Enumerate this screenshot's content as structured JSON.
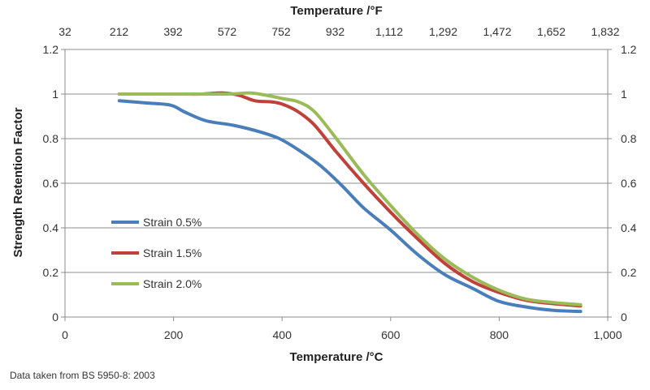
{
  "chart_data": {
    "type": "line",
    "title": "",
    "xlabel": "Temperature /°C",
    "x2label": "Temperature /°F",
    "ylabel": "Strength Retention Factor",
    "xlim": [
      0,
      1000
    ],
    "ylim": [
      0,
      1.2
    ],
    "x_ticks": [
      0,
      200,
      400,
      600,
      800,
      1000
    ],
    "x_tick_labels": [
      "0",
      "200",
      "400",
      "600",
      "800",
      "1,000"
    ],
    "x2_tick_labels": [
      "32",
      "212",
      "392",
      "572",
      "752",
      "932",
      "1,112",
      "1,292",
      "1,472",
      "1,652",
      "1,832"
    ],
    "y_ticks": [
      0,
      0.2,
      0.4,
      0.6,
      0.8,
      1,
      1.2
    ],
    "y_tick_labels": [
      "0",
      "0.2",
      "0.4",
      "0.6",
      "0.8",
      "1",
      "1.2"
    ],
    "grid": "horizontal",
    "legend_position": "center-left",
    "series": [
      {
        "name": "Strain 0.5%",
        "color": "#4a7ebb",
        "x": [
          100,
          150,
          195,
          220,
          260,
          310,
          360,
          395,
          430,
          470,
          510,
          550,
          600,
          650,
          700,
          750,
          800,
          850,
          900,
          950
        ],
        "y": [
          0.97,
          0.96,
          0.95,
          0.92,
          0.88,
          0.86,
          0.83,
          0.8,
          0.75,
          0.68,
          0.59,
          0.49,
          0.39,
          0.28,
          0.19,
          0.13,
          0.07,
          0.045,
          0.03,
          0.025
        ]
      },
      {
        "name": "Strain 1.5%",
        "color": "#c0403a",
        "x": [
          100,
          200,
          250,
          290,
          320,
          350,
          380,
          400,
          430,
          460,
          500,
          550,
          600,
          650,
          700,
          750,
          800,
          850,
          900,
          950
        ],
        "y": [
          1.0,
          1.0,
          1.0,
          1.005,
          0.995,
          0.97,
          0.965,
          0.955,
          0.92,
          0.86,
          0.74,
          0.6,
          0.47,
          0.35,
          0.24,
          0.16,
          0.11,
          0.075,
          0.06,
          0.05
        ]
      },
      {
        "name": "Strain 2.0%",
        "color": "#9bbb59",
        "x": [
          100,
          200,
          300,
          340,
          370,
          400,
          430,
          460,
          500,
          550,
          600,
          650,
          700,
          750,
          800,
          850,
          900,
          950
        ],
        "y": [
          1.0,
          1.0,
          1.0,
          1.005,
          0.995,
          0.98,
          0.965,
          0.92,
          0.8,
          0.64,
          0.5,
          0.37,
          0.26,
          0.18,
          0.12,
          0.08,
          0.065,
          0.055
        ]
      }
    ]
  },
  "footnote": "Data taken from BS 5950-8: 2003"
}
